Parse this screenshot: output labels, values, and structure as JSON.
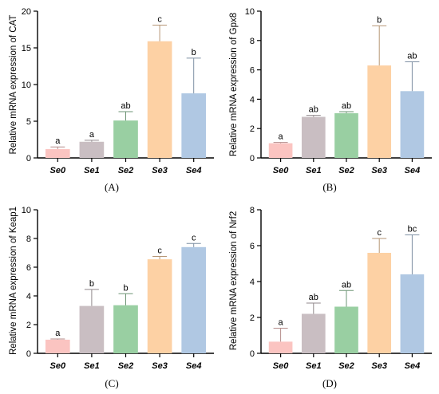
{
  "chart_data": [
    {
      "type": "bar",
      "panel_label": "(A)",
      "ylabel": "Relative mRNA expression of CAT",
      "ylim": [
        0,
        20
      ],
      "yticks": [
        "0",
        "5",
        "10",
        "15",
        "20"
      ],
      "categories": [
        "Se0",
        "Se1",
        "Se2",
        "Se3",
        "Se4"
      ],
      "values": [
        1.2,
        2.2,
        5.1,
        15.9,
        8.8
      ],
      "errors": [
        0.3,
        0.2,
        1.2,
        2.2,
        4.8
      ],
      "significance": [
        "a",
        "a",
        "ab",
        "c",
        "b"
      ],
      "bar_colors": [
        "#fbc4c1",
        "#c9bec2",
        "#99cfa2",
        "#fdd1a4",
        "#b0c8e3"
      ],
      "grid": false
    },
    {
      "type": "bar",
      "panel_label": "(B)",
      "ylabel": "Relative mRNA expression of Gpx8",
      "ylim": [
        0,
        10
      ],
      "yticks": [
        "0",
        "2",
        "4",
        "6",
        "8",
        "10"
      ],
      "categories": [
        "Se0",
        "Se1",
        "Se2",
        "Se3",
        "Se4"
      ],
      "values": [
        1.0,
        2.8,
        3.05,
        6.3,
        4.55
      ],
      "errors": [
        0.05,
        0.1,
        0.1,
        2.7,
        2.0
      ],
      "significance": [
        "a",
        "ab",
        "ab",
        "b",
        "ab"
      ],
      "bar_colors": [
        "#fbc4c1",
        "#c9bec2",
        "#99cfa2",
        "#fdd1a4",
        "#b0c8e3"
      ],
      "grid": false
    },
    {
      "type": "bar",
      "panel_label": "(C)",
      "ylabel": "Relative mRNA expression of Keap1",
      "ylim": [
        0,
        10
      ],
      "yticks": [
        "0",
        "2",
        "4",
        "6",
        "8",
        "10"
      ],
      "categories": [
        "Se0",
        "Se1",
        "Se2",
        "Se3",
        "Se4"
      ],
      "values": [
        0.95,
        3.3,
        3.35,
        6.55,
        7.4
      ],
      "errors": [
        0.05,
        1.15,
        0.8,
        0.2,
        0.25
      ],
      "significance": [
        "a",
        "b",
        "b",
        "c",
        "c"
      ],
      "bar_colors": [
        "#fbc4c1",
        "#c9bec2",
        "#99cfa2",
        "#fdd1a4",
        "#b0c8e3"
      ],
      "grid": false
    },
    {
      "type": "bar",
      "panel_label": "(D)",
      "ylabel": "Relative mRNA expression of Nrf2",
      "ylim": [
        0,
        8
      ],
      "yticks": [
        "0",
        "2",
        "4",
        "6",
        "8"
      ],
      "categories": [
        "Se0",
        "Se1",
        "Se2",
        "Se3",
        "Se4"
      ],
      "values": [
        0.65,
        2.2,
        2.6,
        5.6,
        4.4
      ],
      "errors": [
        0.75,
        0.6,
        0.9,
        0.8,
        2.2
      ],
      "significance": [
        "a",
        "ab",
        "ab",
        "c",
        "bc"
      ],
      "bar_colors": [
        "#fbc4c1",
        "#c9bec2",
        "#99cfa2",
        "#fdd1a4",
        "#b0c8e3"
      ],
      "grid": false
    }
  ]
}
